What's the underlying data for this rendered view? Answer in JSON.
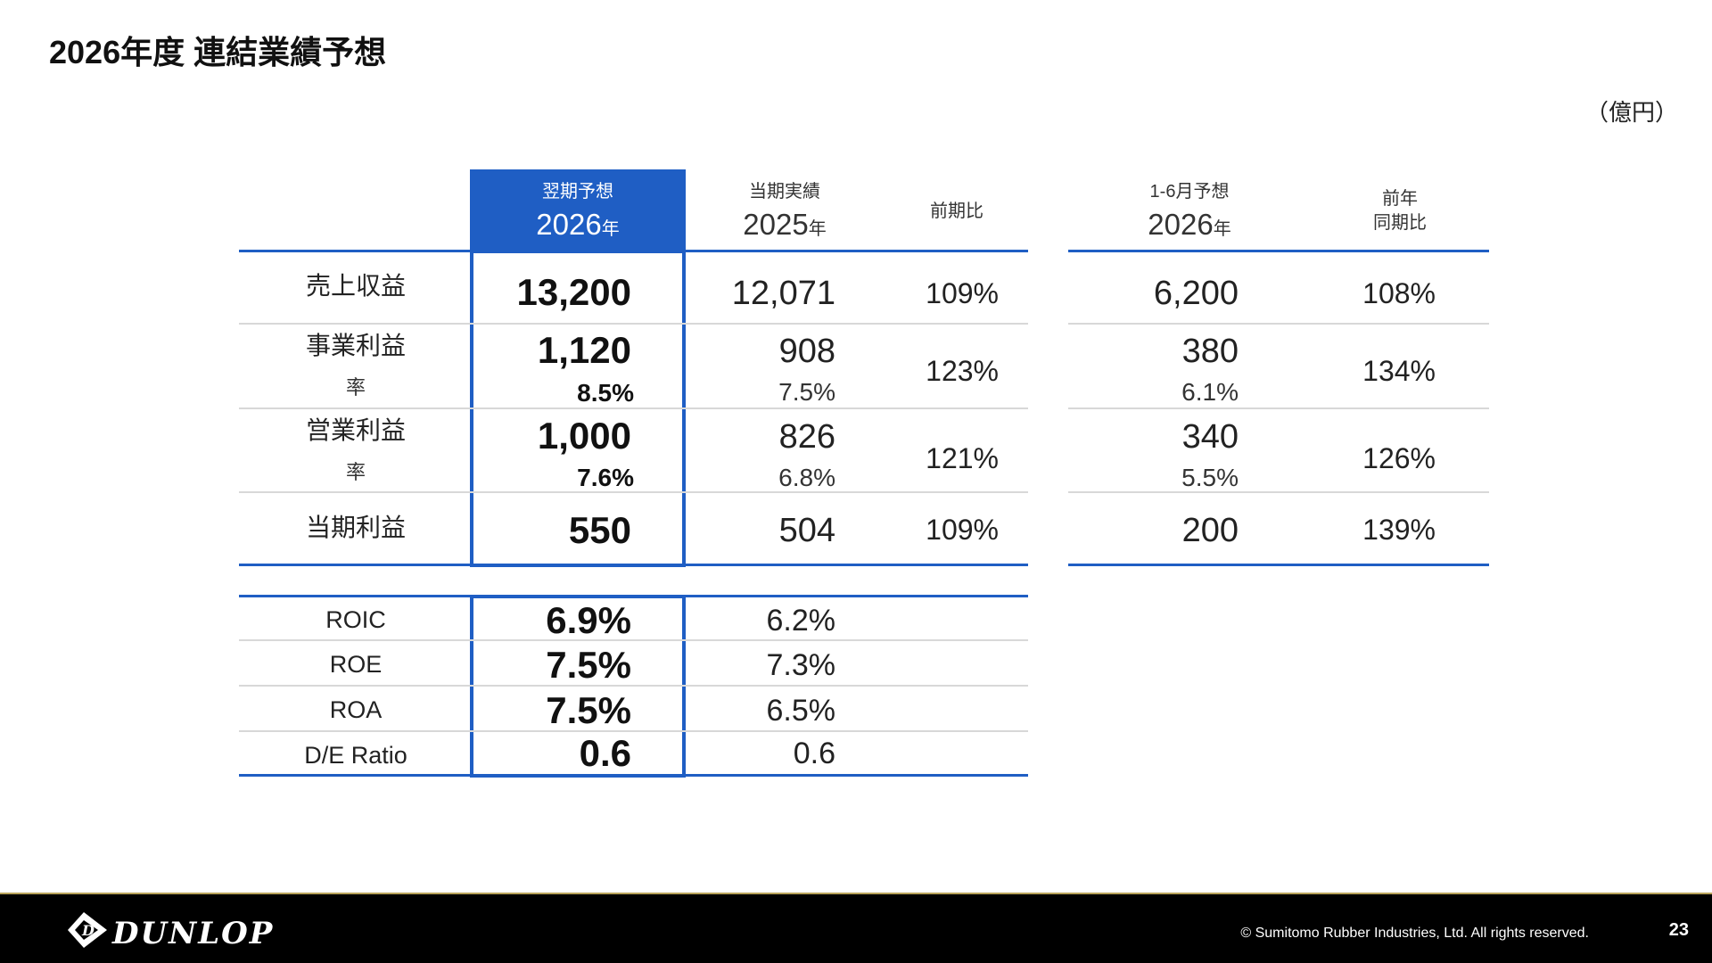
{
  "page": {
    "title": "2026年度 連結業績予想",
    "unit": "（億円）"
  },
  "header": {
    "forecast_next": {
      "label": "翌期予想",
      "year": "2026",
      "year_suffix": "年"
    },
    "actual_current": {
      "label": "当期実績",
      "year": "2025",
      "year_suffix": "年"
    },
    "yoy": "前期比",
    "half_forecast": {
      "label": "1-6月予想",
      "year": "2026",
      "year_suffix": "年"
    },
    "half_yoy": {
      "line1": "前年",
      "line2": "同期比"
    }
  },
  "rows": [
    {
      "label": "売上収益",
      "forecast": "13,200",
      "actual": "12,071",
      "yoy": "109%",
      "half": "6,200",
      "half_yoy": "108%"
    },
    {
      "label": "事業利益",
      "sub_label": "率",
      "forecast": "1,120",
      "forecast_rate": "8.5%",
      "actual": "908",
      "actual_rate": "7.5%",
      "yoy": "123%",
      "half": "380",
      "half_rate": "6.1%",
      "half_yoy": "134%"
    },
    {
      "label": "営業利益",
      "sub_label": "率",
      "forecast": "1,000",
      "forecast_rate": "7.6%",
      "actual": "826",
      "actual_rate": "6.8%",
      "yoy": "121%",
      "half": "340",
      "half_rate": "5.5%",
      "half_yoy": "126%"
    },
    {
      "label": "当期利益",
      "forecast": "550",
      "actual": "504",
      "yoy": "109%",
      "half": "200",
      "half_yoy": "139%"
    }
  ],
  "ratios": [
    {
      "label": "ROIC",
      "forecast": "6.9%",
      "actual": "6.2%"
    },
    {
      "label": "ROE",
      "forecast": "7.5%",
      "actual": "7.3%"
    },
    {
      "label": "ROA",
      "forecast": "7.5%",
      "actual": "6.5%"
    },
    {
      "label": "D/E Ratio",
      "forecast": "0.6",
      "actual": "0.6"
    }
  ],
  "footer": {
    "brand": "DUNLOP",
    "copyright": "© Sumitomo Rubber Industries, Ltd. All rights reserved.",
    "page_number": "23"
  },
  "colors": {
    "accent": "#1f5ec4",
    "footer_bg": "#000000"
  }
}
